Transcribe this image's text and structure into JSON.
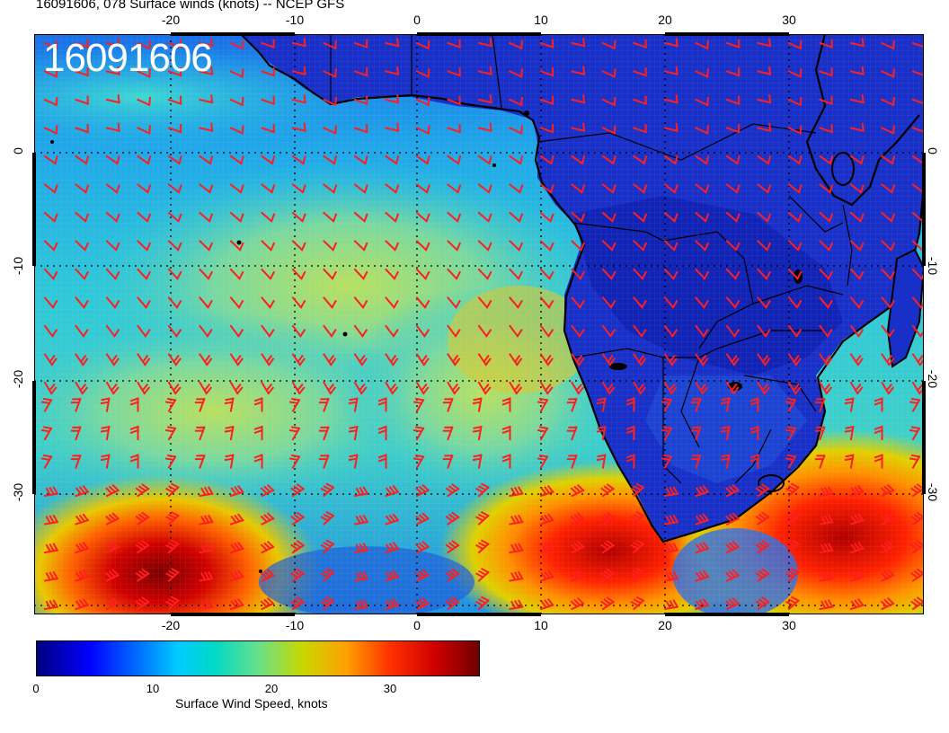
{
  "header": {
    "title": "16091606, 078 Surface winds (knots) -- NCEP GFS",
    "stamp": "16091606"
  },
  "map": {
    "projection": "cylindrical equidistant",
    "lon_range": [
      -30,
      40
    ],
    "lat_range": [
      -40,
      10
    ],
    "lon_ticks": [
      "-20",
      "-10",
      "0",
      "10",
      "20",
      "30"
    ],
    "lat_ticks": [
      "0",
      "-10",
      "-20",
      "-30"
    ],
    "gridlines": "dotted",
    "barb_color": "#ff2020",
    "coastline_color": "#000000",
    "high_wind_regions": [
      "South Atlantic southwest",
      "Cape of Good Hope",
      "Southwest Indian Ocean"
    ]
  },
  "colorbar": {
    "label": "Surface Wind Speed, knots",
    "ticks": [
      "0",
      "10",
      "20",
      "30"
    ],
    "range": [
      0,
      38
    ],
    "colors": [
      "#000080",
      "#0000ff",
      "#0066ff",
      "#00ccff",
      "#00d8c8",
      "#66e08c",
      "#c8d800",
      "#ffa000",
      "#ff3000",
      "#d00000",
      "#700000"
    ]
  }
}
